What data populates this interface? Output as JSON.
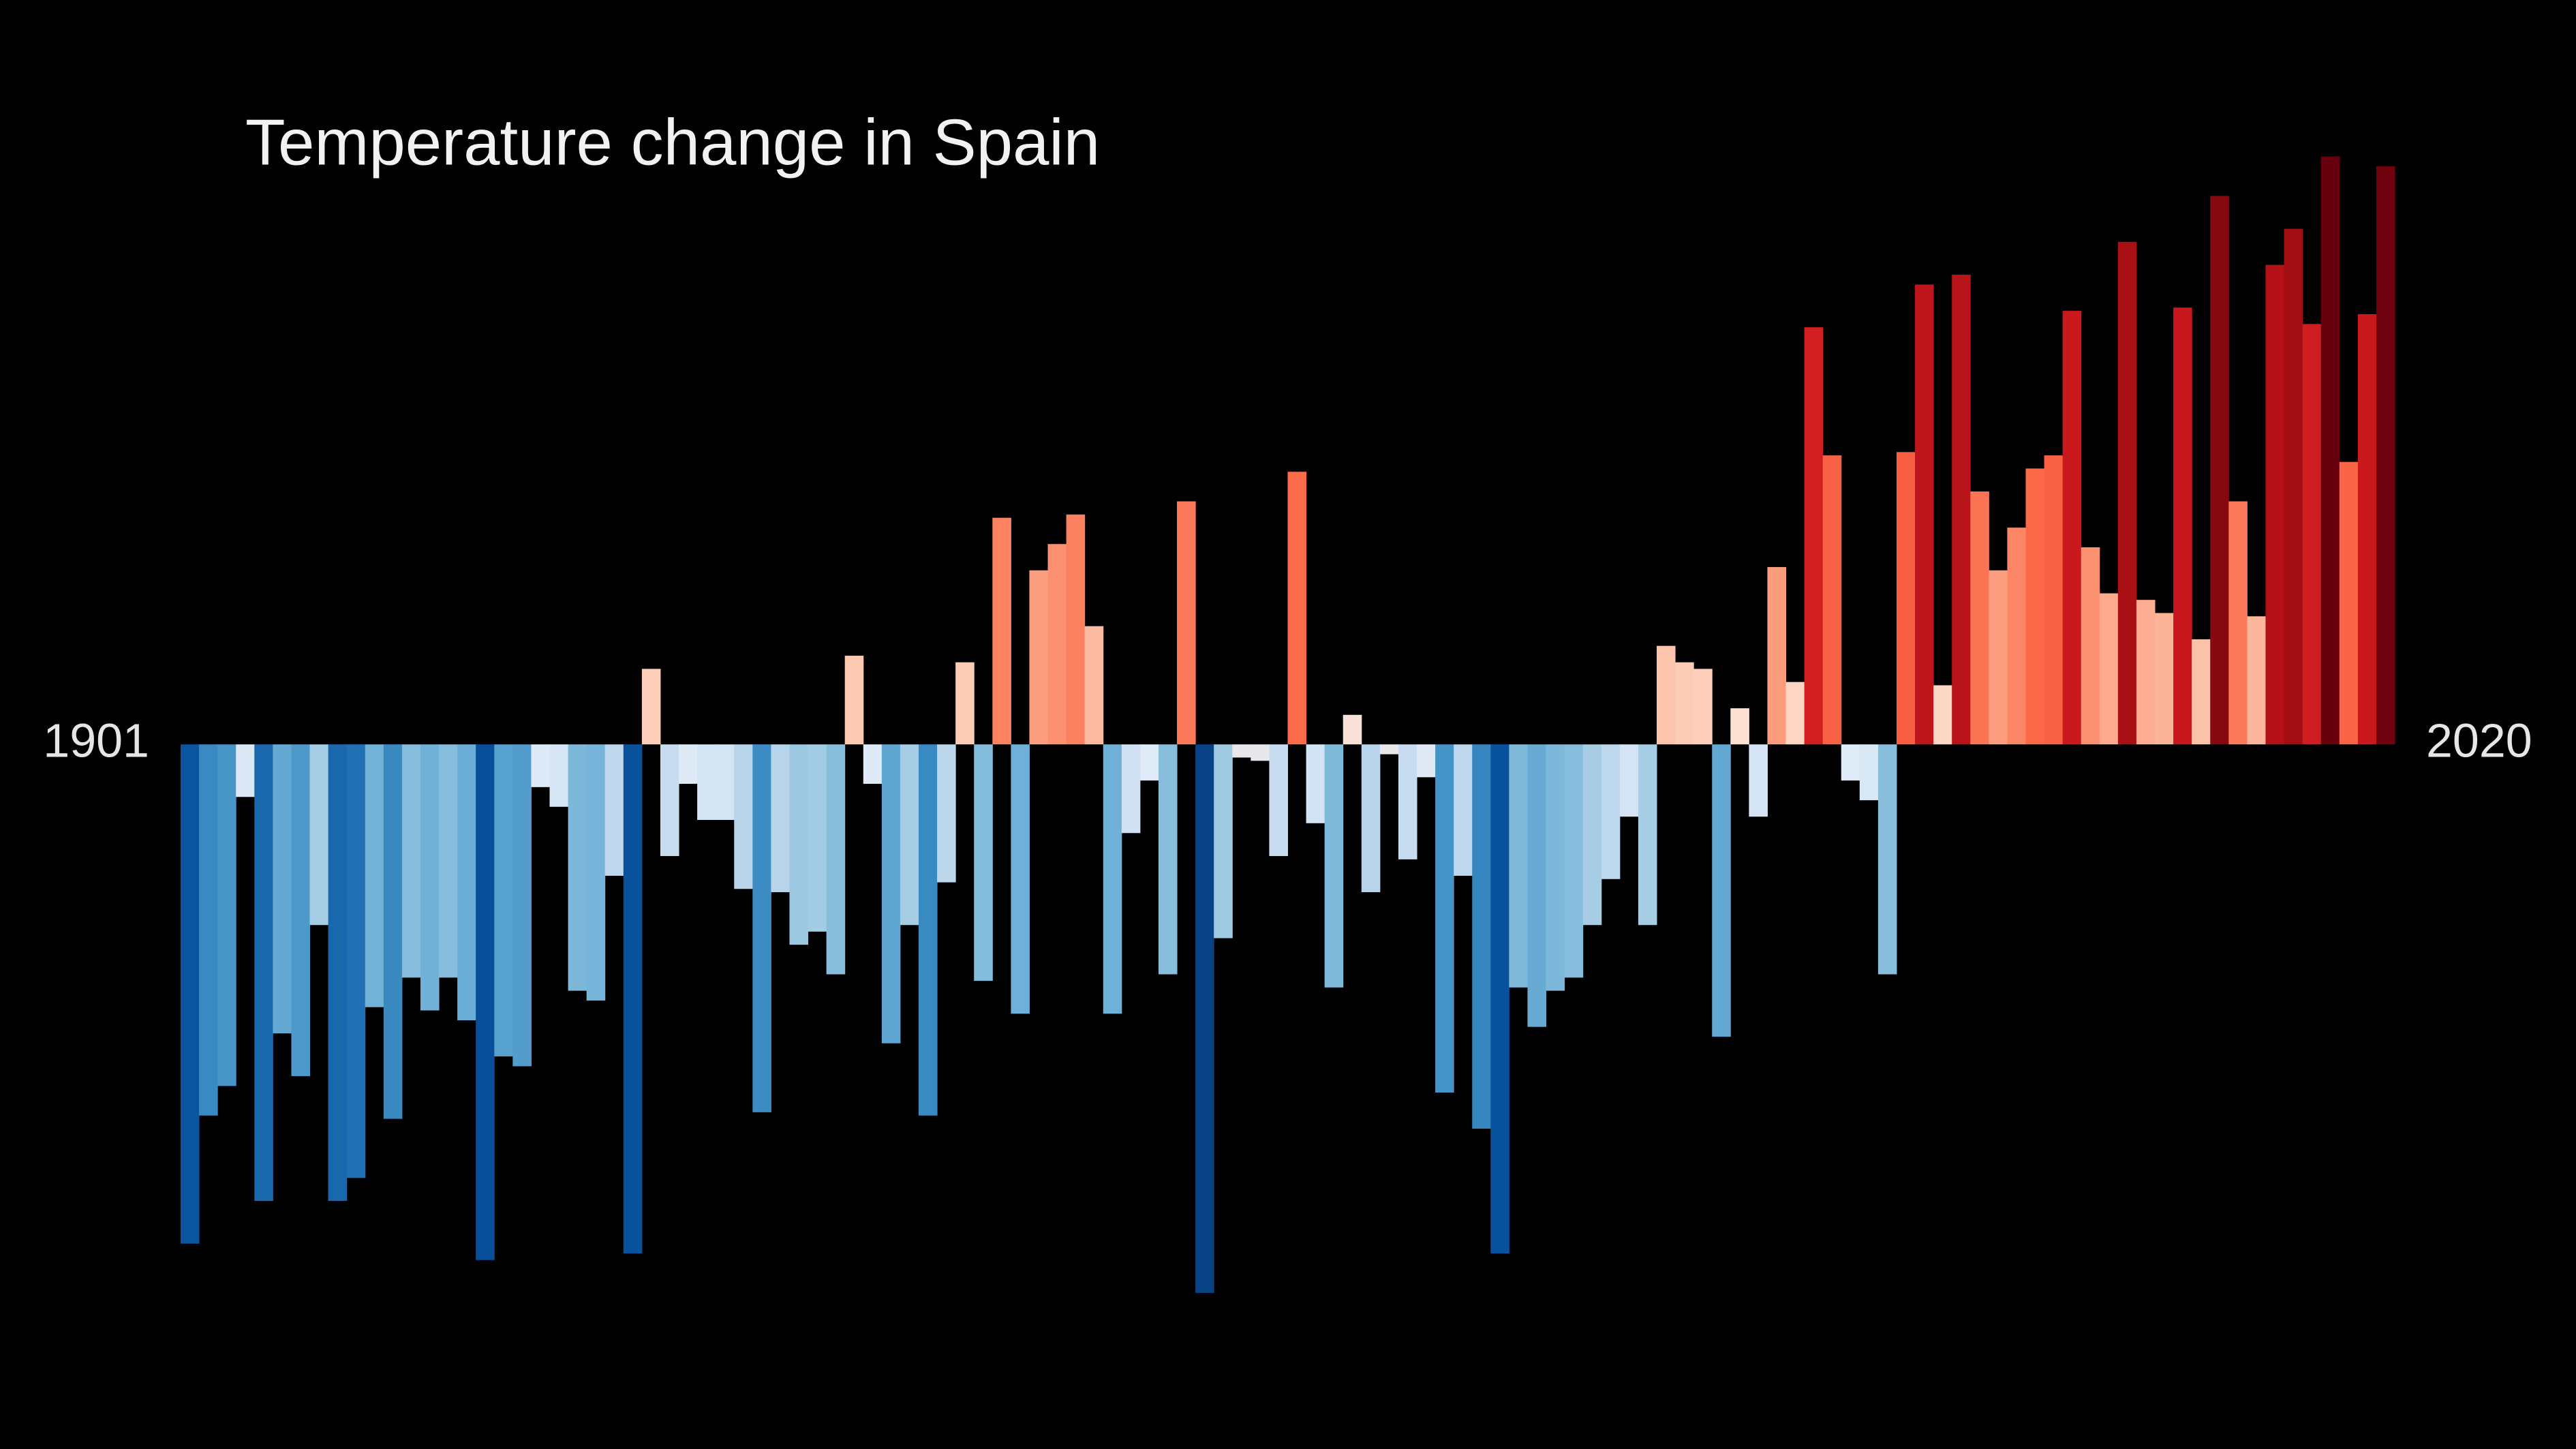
{
  "chart_data": {
    "type": "bar",
    "title": "Temperature change in Spain",
    "categories": [
      "1901",
      null,
      null,
      null,
      null,
      null,
      null,
      null,
      null,
      null,
      null,
      null,
      null,
      null,
      null,
      null,
      null,
      null,
      null,
      null,
      null,
      null,
      null,
      null,
      null,
      null,
      null,
      null,
      null,
      null,
      null,
      null,
      null,
      null,
      null,
      null,
      null,
      null,
      null,
      null,
      null,
      null,
      null,
      null,
      null,
      null,
      null,
      null,
      null,
      null,
      null,
      null,
      null,
      null,
      null,
      null,
      null,
      null,
      null,
      null,
      null,
      null,
      null,
      null,
      null,
      null,
      null,
      null,
      null,
      null,
      null,
      null,
      null,
      null,
      null,
      null,
      null,
      null,
      null,
      null,
      null,
      null,
      null,
      null,
      null,
      null,
      null,
      null,
      null,
      null,
      null,
      null,
      null,
      null,
      null,
      null,
      null,
      null,
      null,
      null,
      null,
      null,
      null,
      null,
      null,
      null,
      null,
      null,
      null,
      null,
      null,
      null,
      null,
      null,
      null,
      null,
      null,
      null,
      null,
      "2020"
    ],
    "values": [
      -1.52,
      -1.13,
      -1.04,
      -0.16,
      -1.39,
      -0.88,
      -1.01,
      -0.55,
      -1.39,
      -1.32,
      -0.8,
      -1.14,
      -0.71,
      -0.81,
      -0.71,
      -0.84,
      -1.57,
      -0.95,
      -0.98,
      -0.13,
      -0.19,
      -0.75,
      -0.78,
      -0.4,
      -1.55,
      0.23,
      -0.34,
      -0.12,
      -0.23,
      -0.23,
      -0.44,
      -1.12,
      -0.45,
      -0.61,
      -0.57,
      -0.7,
      0.27,
      -0.12,
      -0.91,
      -0.55,
      -1.13,
      -0.42,
      0.25,
      -0.72,
      0.69,
      -0.82,
      0.53,
      0.61,
      0.7,
      0.36,
      -0.82,
      -0.27,
      -0.11,
      -0.7,
      0.74,
      -1.67,
      -0.59,
      -0.04,
      -0.05,
      -0.34,
      0.83,
      -0.24,
      -0.74,
      0.09,
      -0.45,
      -0.03,
      -0.35,
      -0.1,
      -1.06,
      -0.4,
      -1.17,
      -1.55,
      -0.74,
      -0.86,
      -0.75,
      -0.71,
      -0.55,
      -0.41,
      -0.22,
      -0.55,
      0.3,
      0.25,
      0.23,
      -0.89,
      0.11,
      -0.22,
      0.54,
      0.19,
      1.27,
      0.88,
      -0.11,
      -0.17,
      -0.7,
      0.89,
      1.4,
      0.18,
      1.43,
      0.77,
      0.53,
      0.66,
      0.84,
      0.88,
      1.32,
      0.6,
      0.46,
      1.53,
      0.44,
      0.4,
      1.33,
      0.32,
      1.67,
      0.74,
      0.39,
      1.46,
      1.57,
      1.28,
      1.79,
      0.86,
      1.31,
      1.76
    ],
    "colormap": [
      "#08306b",
      "#08519c",
      "#2171b5",
      "#4292c6",
      "#6baed6",
      "#9ecae1",
      "#c6dbef",
      "#deebf7",
      "#fee0d2",
      "#fcbba1",
      "#fc9272",
      "#fb6a4a",
      "#ef3b2c",
      "#cb181d",
      "#a50f15",
      "#67000d"
    ],
    "ylim": [
      -2.0,
      2.2
    ]
  }
}
